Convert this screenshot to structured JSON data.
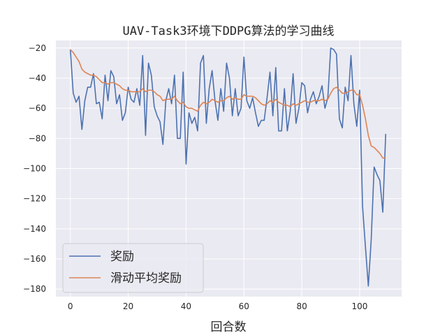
{
  "chart_data": {
    "type": "line",
    "title": "UAV-Task3环境下DDPG算法的学习曲线",
    "xlabel": "回合数",
    "ylabel": "",
    "xlim": [
      -5,
      114.5
    ],
    "ylim": [
      -185,
      -15
    ],
    "xticks": [
      0,
      20,
      40,
      60,
      80,
      100
    ],
    "yticks": [
      -180,
      -160,
      -140,
      -120,
      -100,
      -80,
      -60,
      -40,
      -20
    ],
    "grid": true,
    "legend_position": "lower-left",
    "colors": {
      "background": "#eaeaf2",
      "grid": "#ffffff",
      "series1": "#4c72b0",
      "series2": "#dd8452"
    },
    "x": [
      0,
      1,
      2,
      3,
      4,
      5,
      6,
      7,
      8,
      9,
      10,
      11,
      12,
      13,
      14,
      15,
      16,
      17,
      18,
      19,
      20,
      21,
      22,
      23,
      24,
      25,
      26,
      27,
      28,
      29,
      30,
      31,
      32,
      33,
      34,
      35,
      36,
      37,
      38,
      39,
      40,
      41,
      42,
      43,
      44,
      45,
      46,
      47,
      48,
      49,
      50,
      51,
      52,
      53,
      54,
      55,
      56,
      57,
      58,
      59,
      60,
      61,
      62,
      63,
      64,
      65,
      66,
      67,
      68,
      69,
      70,
      71,
      72,
      73,
      74,
      75,
      76,
      77,
      78,
      79,
      80,
      81,
      82,
      83,
      84,
      85,
      86,
      87,
      88,
      89,
      90,
      91,
      92,
      93,
      94,
      95,
      96,
      97,
      98,
      99,
      100,
      101,
      102,
      103,
      104,
      105,
      106,
      107,
      108,
      109
    ],
    "series": [
      {
        "name": "奖励",
        "values": [
          -21,
          -50,
          -56,
          -52,
          -74,
          -55,
          -46,
          -46,
          -37,
          -57,
          -56,
          -67,
          -38,
          -55,
          -35,
          -39,
          -57,
          -51,
          -68,
          -63,
          -46,
          -54,
          -56,
          -47,
          -58,
          -25,
          -78,
          -30,
          -38,
          -59,
          -65,
          -69,
          -84,
          -55,
          -47,
          -57,
          -38,
          -80,
          -80,
          -36,
          -97,
          -63,
          -70,
          -66,
          -75,
          -30,
          -25,
          -70,
          -47,
          -35,
          -55,
          -68,
          -47,
          -62,
          -30,
          -40,
          -65,
          -47,
          -65,
          -60,
          -26,
          -55,
          -60,
          -53,
          -63,
          -72,
          -68,
          -68,
          -53,
          -36,
          -65,
          -33,
          -75,
          -75,
          -47,
          -75,
          -62,
          -37,
          -70,
          -60,
          -43,
          -45,
          -63,
          -54,
          -49,
          -57,
          -52,
          -45,
          -60,
          -53,
          -20,
          -21,
          -24,
          -67,
          -73,
          -46,
          -55,
          -25,
          -57,
          -72,
          -48,
          -125,
          -152,
          -178,
          -147,
          -99,
          -104,
          -108,
          -129,
          -77
        ]
      },
      {
        "name": "滑动平均奖励",
        "values": [
          -21,
          -23,
          -26,
          -29,
          -34,
          -36,
          -37,
          -38,
          -38,
          -39,
          -41,
          -43,
          -43,
          -44,
          -43,
          -43,
          -44,
          -45,
          -47,
          -48,
          -48,
          -49,
          -49,
          -49,
          -49,
          -47,
          -49,
          -48,
          -48,
          -49,
          -51,
          -52,
          -55,
          -54,
          -54,
          -54,
          -52,
          -55,
          -57,
          -56,
          -59,
          -60,
          -60,
          -61,
          -62,
          -58,
          -56,
          -57,
          -56,
          -54,
          -55,
          -56,
          -55,
          -55,
          -53,
          -52,
          -54,
          -53,
          -54,
          -54,
          -51,
          -52,
          -52,
          -52,
          -53,
          -55,
          -57,
          -58,
          -57,
          -55,
          -56,
          -54,
          -56,
          -57,
          -58,
          -58,
          -59,
          -57,
          -58,
          -57,
          -56,
          -55,
          -56,
          -56,
          -55,
          -55,
          -55,
          -54,
          -55,
          -54,
          -50,
          -47,
          -46,
          -48,
          -50,
          -50,
          -49,
          -48,
          -48,
          -51,
          -51,
          -58,
          -67,
          -78,
          -85,
          -86,
          -88,
          -90,
          -93,
          -93
        ]
      }
    ]
  }
}
